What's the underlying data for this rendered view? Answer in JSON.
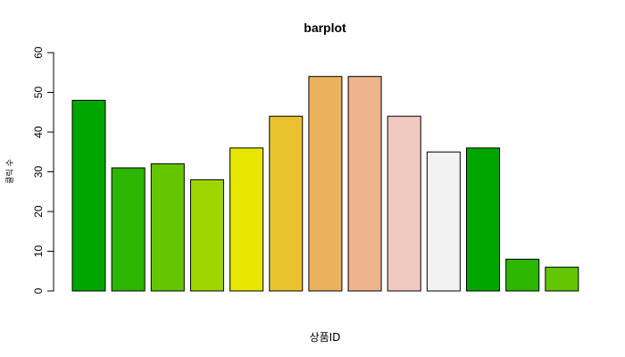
{
  "chart_data": {
    "type": "bar",
    "title": "barplot",
    "xlabel": "상품ID",
    "ylabel": "클릭 수",
    "ylim": [
      0,
      60
    ],
    "yticks": [
      0,
      10,
      20,
      30,
      40,
      50,
      60
    ],
    "grid": false,
    "values": [
      48,
      31,
      32,
      28,
      36,
      44,
      54,
      54,
      44,
      35,
      36,
      8,
      6
    ],
    "colors": [
      "#00A600",
      "#2DB600",
      "#63C600",
      "#A0D600",
      "#E6E600",
      "#E8C32E",
      "#EBB25E",
      "#EDB48E",
      "#F0C9C0",
      "#F2F2F2",
      "#00A600",
      "#2DB600",
      "#63C600"
    ]
  }
}
